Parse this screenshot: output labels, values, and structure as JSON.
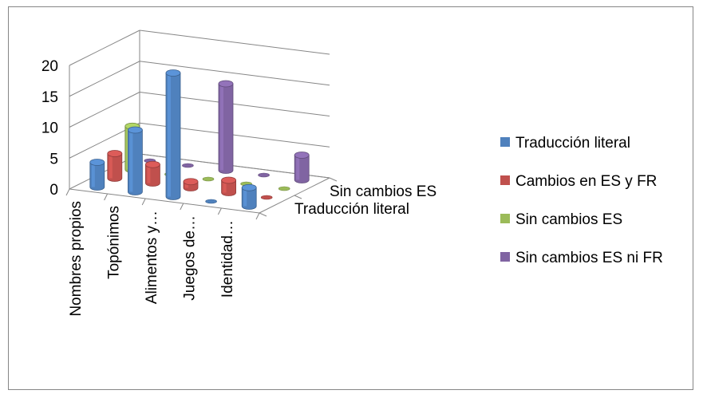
{
  "chart_data": {
    "type": "bar",
    "subtype": "3d-cylinder",
    "title": "",
    "categories": [
      "Nombres propios",
      "Topónimos",
      "Alimentos y…",
      "Juegos de…",
      "Identidad…"
    ],
    "depth_labels": [
      "Traducción literal",
      "Sin cambios ES"
    ],
    "yticks": [
      0,
      5,
      10,
      15,
      20
    ],
    "ylim": [
      0,
      20
    ],
    "grid": true,
    "legend_position": "right",
    "series": [
      {
        "name": "Traducción literal",
        "color": "#4F81BD",
        "values": [
          4,
          10,
          20,
          0,
          3
        ]
      },
      {
        "name": "Cambios en ES y FR",
        "color": "#C0504D",
        "values": [
          4,
          3,
          1,
          2,
          0
        ]
      },
      {
        "name": "Sin cambios ES",
        "color": "#9BBB59",
        "values": [
          7,
          0,
          0,
          0,
          0
        ]
      },
      {
        "name": "Sin cambios ES ni FR",
        "color": "#8064A2",
        "values": [
          0,
          0,
          14,
          0,
          4
        ]
      }
    ]
  }
}
